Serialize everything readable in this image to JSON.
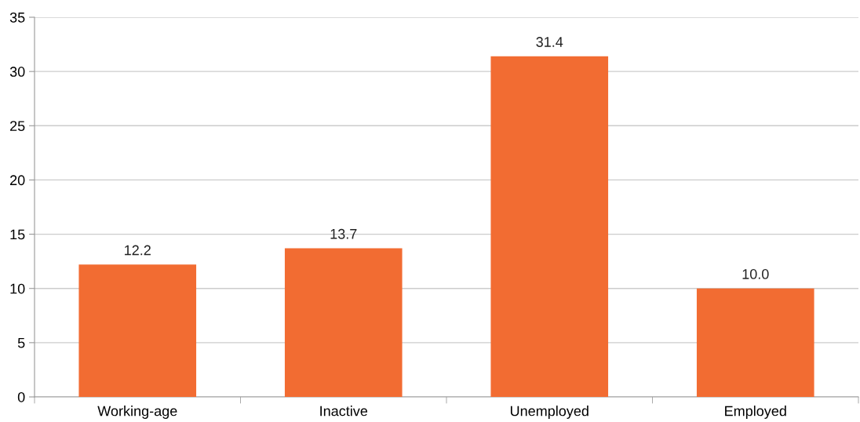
{
  "chart_data": {
    "type": "bar",
    "categories": [
      "Working-age",
      "Inactive",
      "Unemployed",
      "Employed"
    ],
    "values": [
      12.2,
      13.7,
      31.4,
      10.0
    ],
    "value_labels": [
      "12.2",
      "13.7",
      "31.4",
      "10.0"
    ],
    "color": "#f26c32",
    "ylim": [
      0,
      35
    ],
    "yticks": [
      0,
      5,
      10,
      15,
      20,
      25,
      30,
      35
    ],
    "grid": "y",
    "legend": false
  }
}
